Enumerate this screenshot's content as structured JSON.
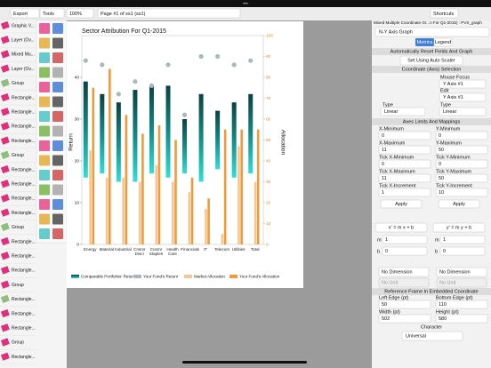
{
  "toolbar": {
    "export": "Export",
    "tools": "Tools",
    "zoom": "100%",
    "page": "Page #1 of ss1 (ss1)",
    "shortcuts": "Shortcuts"
  },
  "layers": [
    "Graphic V...",
    "Layer (Ov...",
    "Mixed Mu...",
    "Layer (Ov...",
    "Group",
    "Rectangle...",
    "Rectangle...",
    "Rectangle...",
    "Rectangle...",
    "Group",
    "Rectangle...",
    "Rectangle...",
    "Rectangle...",
    "Rectangle...",
    "Group",
    "Rectangle...",
    "Rectangle...",
    "Rectangle...",
    "Group",
    "Rectangle...",
    "Rectangle...",
    "Rectangle...",
    "Group",
    "Rectangle..."
  ],
  "chart": {
    "type": "bar",
    "title": "Sector Attribution For Q1-2015",
    "y_label": "Return",
    "y2_label": "Allocation",
    "categories": [
      "Energy",
      "Material",
      "Industrial",
      "Cnsmr Discr",
      "Cnsmr Staples",
      "Health Care",
      "Financials",
      "IT",
      "Telecom",
      "Utilities",
      "Total"
    ],
    "ylim": [
      0,
      50
    ],
    "yticks": [
      0,
      10,
      20,
      30,
      40
    ],
    "y2lim": [
      0,
      100
    ],
    "y2ticks": [
      0,
      10,
      20,
      30,
      40,
      50,
      60,
      70,
      80,
      90,
      100
    ],
    "series": [
      {
        "name": "Comparable Portfolios' Returns",
        "color": "#0f8080",
        "low": [
          16,
          17,
          15,
          15,
          17,
          16,
          17,
          15,
          18,
          16,
          17
        ],
        "high": [
          39,
          36,
          34,
          37,
          38,
          38,
          30,
          36,
          32,
          34,
          36
        ]
      },
      {
        "name": "Your Fund's Return",
        "color": "#a9b8b8",
        "values": [
          44,
          43,
          36,
          39,
          38,
          43,
          31,
          45,
          45,
          43,
          44
        ]
      },
      {
        "name": "Market Allocation",
        "color": "#f5c792",
        "axis": "y2",
        "values": [
          45,
          32,
          32,
          30,
          38,
          30,
          25,
          17,
          5,
          47,
          30
        ]
      },
      {
        "name": "Your Fund's Allocation",
        "color": "#f29a3a",
        "axis": "y2",
        "values": [
          75,
          84,
          62,
          53,
          57,
          50,
          32,
          22,
          55,
          55,
          55
        ]
      }
    ]
  },
  "panel": {
    "title": "Mixed Multiple Coordinate Gr...n For Q1-2015) : PVS_graph",
    "graph_type": "N-Y Axis Graph",
    "metrics": "Metrics",
    "legend": "Legend",
    "reset_header": "Automatically Reset Fields And Graph",
    "auto_scaler": "Set Using Auto Scaler",
    "coord_header": "Coordinate (Axis) Selection",
    "mouse_focus_label": "Mouse Focus",
    "mouse_focus": "Y Axis #1",
    "edit_label": "Edit",
    "edit": "Y Axis #1",
    "type_label_x": "Type",
    "type_x": "Linear",
    "type_label_y": "Type",
    "type_y": "Linear",
    "limits_header": "Axes Limits And Mappings",
    "fields": [
      {
        "label": "X-Minimum",
        "value": 0
      },
      {
        "label": "Y-Minimum",
        "value": 0
      },
      {
        "label": "X-Maximum",
        "value": 11
      },
      {
        "label": "Y-Maximum",
        "value": 50
      },
      {
        "label": "Tick X-Minimum",
        "value": 0
      },
      {
        "label": "Tick Y-Minimum",
        "value": 0
      },
      {
        "label": "Tick X-Maximum",
        "value": 11
      },
      {
        "label": "Tick Y-Maximum",
        "value": 50
      },
      {
        "label": "Tick X-Increment",
        "value": 1
      },
      {
        "label": "Tick Y-Increment",
        "value": 10
      }
    ],
    "apply": [
      "Apply",
      "Apply"
    ],
    "formulas": [
      "x' = m x + b",
      "y' = m y + b"
    ],
    "mappings": [
      {
        "m_label": "m",
        "m": 1,
        "b_label": "b",
        "b": 0
      },
      {
        "m_label": "m",
        "m": 1,
        "b_label": "b",
        "b": 0
      }
    ],
    "dimensions": [
      "No Dimension",
      "No Dimension"
    ],
    "units": [
      "No Unit",
      "No Unit"
    ],
    "ref_header": "Reference Frame In Embedded Coordinate",
    "frame": [
      {
        "label": "Left Edge (pt)",
        "value": 50
      },
      {
        "label": "Bottom Edge (pt)",
        "value": 110
      },
      {
        "label": "Width (pt)",
        "value": 502
      },
      {
        "label": "Height (pt)",
        "value": 580
      }
    ],
    "character_label": "Character",
    "character": "Universal"
  }
}
